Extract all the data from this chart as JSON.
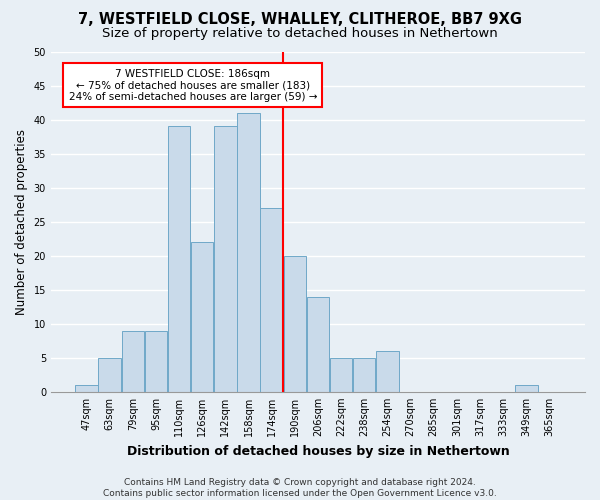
{
  "title_line1": "7, WESTFIELD CLOSE, WHALLEY, CLITHEROE, BB7 9XG",
  "title_line2": "Size of property relative to detached houses in Nethertown",
  "xlabel": "Distribution of detached houses by size in Nethertown",
  "ylabel": "Number of detached properties",
  "bar_labels": [
    "47sqm",
    "63sqm",
    "79sqm",
    "95sqm",
    "110sqm",
    "126sqm",
    "142sqm",
    "158sqm",
    "174sqm",
    "190sqm",
    "206sqm",
    "222sqm",
    "238sqm",
    "254sqm",
    "270sqm",
    "285sqm",
    "301sqm",
    "317sqm",
    "333sqm",
    "349sqm",
    "365sqm"
  ],
  "bar_values": [
    1,
    5,
    9,
    9,
    39,
    22,
    39,
    41,
    27,
    20,
    14,
    5,
    5,
    6,
    0,
    0,
    0,
    0,
    0,
    1,
    0
  ],
  "bar_color": "#c9daea",
  "bar_edgecolor": "#6fa8c8",
  "vline_index": 8,
  "annotation_title": "7 WESTFIELD CLOSE: 186sqm",
  "annotation_line2": "← 75% of detached houses are smaller (183)",
  "annotation_line3": "24% of semi-detached houses are larger (59) →",
  "annotation_box_color": "white",
  "annotation_box_edgecolor": "red",
  "vline_color": "red",
  "ylim": [
    0,
    50
  ],
  "yticks": [
    0,
    5,
    10,
    15,
    20,
    25,
    30,
    35,
    40,
    45,
    50
  ],
  "background_color": "#e8eff5",
  "grid_color": "white",
  "footer_line1": "Contains HM Land Registry data © Crown copyright and database right 2024.",
  "footer_line2": "Contains public sector information licensed under the Open Government Licence v3.0.",
  "title_fontsize": 10.5,
  "subtitle_fontsize": 9.5,
  "ylabel_fontsize": 8.5,
  "xlabel_fontsize": 9,
  "tick_fontsize": 7,
  "annot_fontsize": 7.5,
  "footer_fontsize": 6.5
}
